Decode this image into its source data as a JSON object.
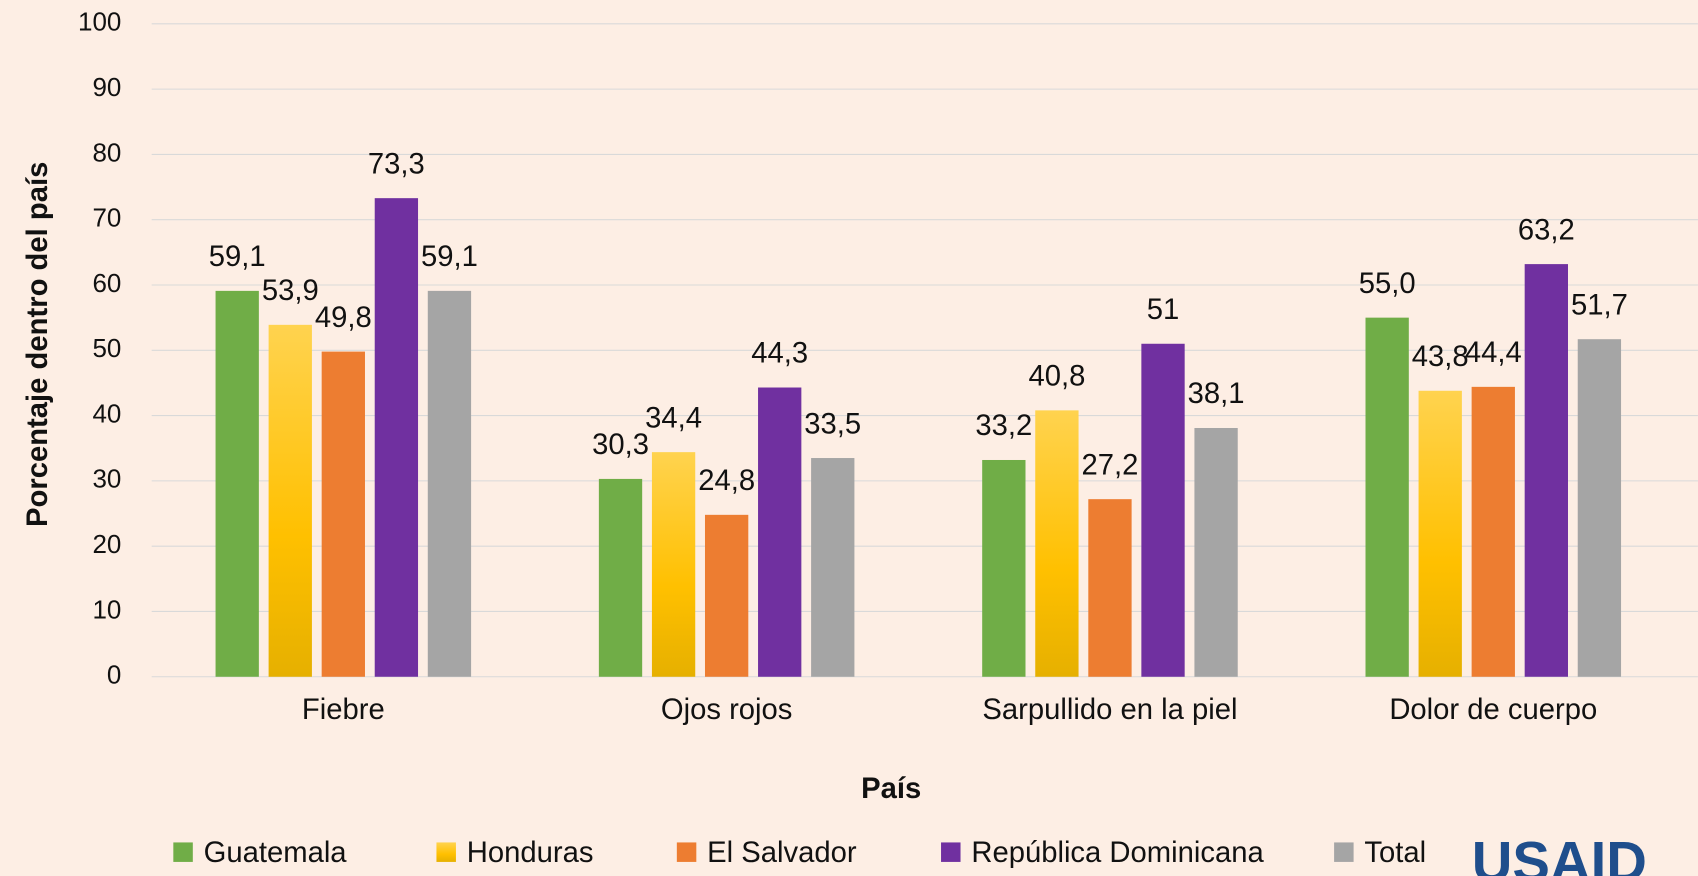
{
  "chart_data": {
    "type": "bar",
    "x_label": "País",
    "y_label": "Porcentaje dentro del país",
    "categories": [
      "Fiebre",
      "Ojos rojos",
      "Sarpullido en la piel",
      "Dolor de cuerpo"
    ],
    "series": [
      {
        "name": "Guatemala",
        "color": "#70ad47",
        "values": [
          59.1,
          30.3,
          33.2,
          55.0
        ],
        "value_labels": [
          "59,1",
          "30,3",
          "33,2",
          "55,0"
        ]
      },
      {
        "name": "Honduras",
        "color": "#ffc000",
        "values": [
          53.9,
          34.4,
          40.8,
          43.8
        ],
        "value_labels": [
          "53,9",
          "34,4",
          "40,8",
          "43,8"
        ]
      },
      {
        "name": "El Salvador",
        "color": "#ed7d31",
        "values": [
          49.8,
          24.8,
          27.2,
          44.4
        ],
        "value_labels": [
          "49,8",
          "24,8",
          "27,2",
          "44,4"
        ]
      },
      {
        "name": "República Dominicana",
        "color": "#7030a0",
        "values": [
          73.3,
          44.3,
          51,
          63.2
        ],
        "value_labels": [
          "73,3",
          "44,3",
          "51",
          "63,2"
        ]
      },
      {
        "name": "Total",
        "color": "#a5a5a5",
        "values": [
          59.1,
          33.5,
          38.1,
          51.7
        ],
        "value_labels": [
          "59,1",
          "33,5",
          "38,1",
          "51,7"
        ]
      }
    ],
    "ylim": [
      0,
      100
    ],
    "yticks": [
      0,
      10,
      20,
      30,
      40,
      50,
      60,
      70,
      80,
      90,
      100
    ],
    "grid": true,
    "legend": "bottom",
    "logo": "USAID"
  }
}
